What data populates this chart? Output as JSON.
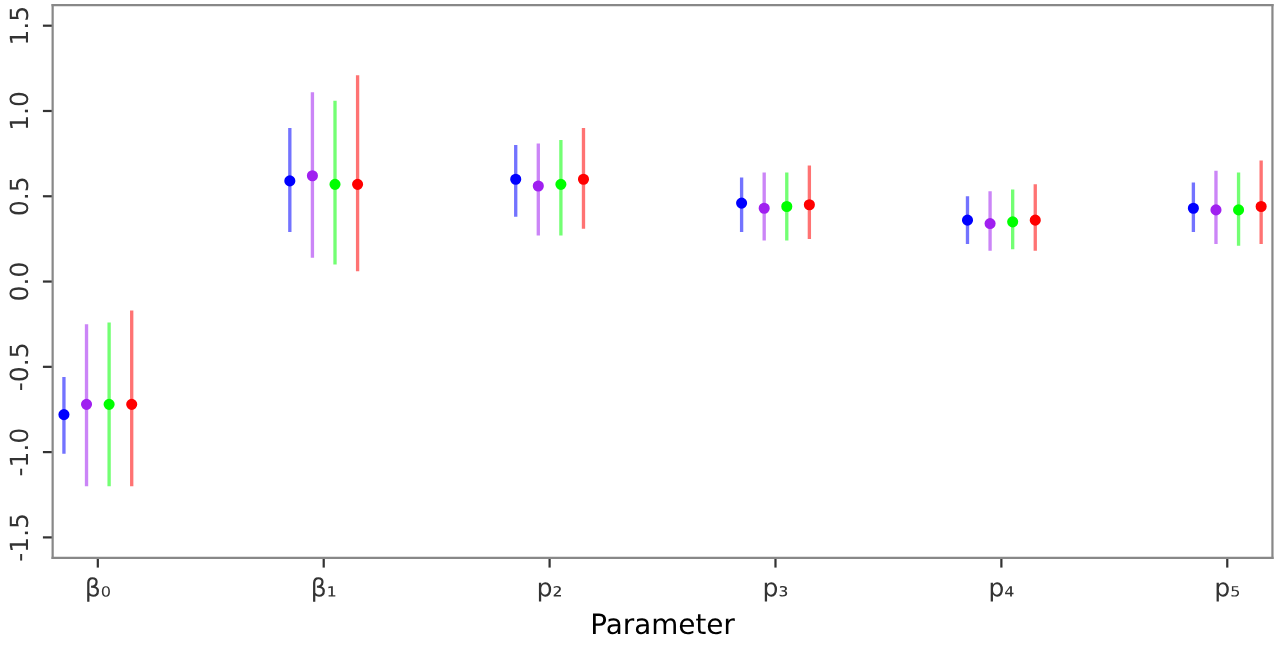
{
  "chart_data": {
    "type": "scatter",
    "xlabel": "Parameter",
    "categories": [
      "β₀",
      "β₁",
      "p₂",
      "p₃",
      "p₄",
      "p₅"
    ],
    "series": [
      {
        "color": "#0000ff",
        "values": [
          -0.78,
          0.59,
          0.6,
          0.46,
          0.36,
          0.43
        ],
        "errors": [
          [
            -1.01,
            -0.56
          ],
          [
            0.29,
            0.9
          ],
          [
            0.38,
            0.8
          ],
          [
            0.29,
            0.61
          ],
          [
            0.22,
            0.5
          ],
          [
            0.29,
            0.58
          ]
        ]
      },
      {
        "color": "#a020f0",
        "values": [
          -0.72,
          0.62,
          0.56,
          0.43,
          0.34,
          0.42
        ],
        "errors": [
          [
            -1.2,
            -0.25
          ],
          [
            0.14,
            1.11
          ],
          [
            0.27,
            0.81
          ],
          [
            0.24,
            0.64
          ],
          [
            0.18,
            0.53
          ],
          [
            0.22,
            0.65
          ]
        ]
      },
      {
        "color": "#00ff00",
        "values": [
          -0.72,
          0.57,
          0.57,
          0.44,
          0.35,
          0.42
        ],
        "errors": [
          [
            -1.2,
            -0.24
          ],
          [
            0.1,
            1.06
          ],
          [
            0.27,
            0.83
          ],
          [
            0.24,
            0.64
          ],
          [
            0.19,
            0.54
          ],
          [
            0.21,
            0.64
          ]
        ]
      },
      {
        "color": "#ff0000",
        "values": [
          -0.72,
          0.57,
          0.6,
          0.45,
          0.36,
          0.44
        ],
        "errors": [
          [
            -1.2,
            -0.17
          ],
          [
            0.06,
            1.21
          ],
          [
            0.31,
            0.9
          ],
          [
            0.25,
            0.68
          ],
          [
            0.18,
            0.57
          ],
          [
            0.22,
            0.71
          ]
        ]
      }
    ],
    "ylim": [
      -1.62,
      1.62
    ],
    "yticks": [
      {
        "value": -1.5,
        "label": "-1.5"
      },
      {
        "value": -1,
        "label": "-1.0"
      },
      {
        "value": -0.5,
        "label": "-0.5"
      },
      {
        "value": 0,
        "label": "0.0"
      },
      {
        "value": 0.5,
        "label": "0.5"
      },
      {
        "value": 1,
        "label": "1.0"
      },
      {
        "value": 1.5,
        "label": "1.5"
      }
    ],
    "grid": false,
    "legend": false,
    "marker": "circle"
  }
}
